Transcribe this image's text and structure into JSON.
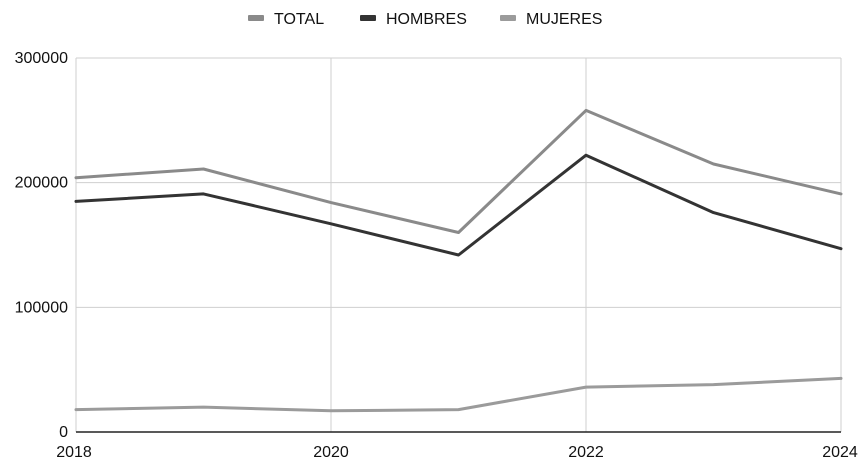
{
  "chart_data": {
    "type": "line",
    "title": "",
    "xlabel": "",
    "ylabel": "",
    "x": [
      2018,
      2019,
      2020,
      2021,
      2022,
      2023,
      2024
    ],
    "xlim": [
      2018,
      2024
    ],
    "ylim": [
      0,
      300000
    ],
    "x_ticks": [
      "2018",
      "2020",
      "2022",
      "2024"
    ],
    "y_ticks": [
      "0",
      "100000",
      "200000",
      "300000"
    ],
    "grid": true,
    "legend_position": "top",
    "series": [
      {
        "name": "TOTAL",
        "color": "#8a8a8a",
        "values": [
          204000,
          211000,
          184000,
          160000,
          258000,
          215000,
          191000
        ]
      },
      {
        "name": "HOMBRES",
        "color": "#333333",
        "values": [
          185000,
          191000,
          167000,
          142000,
          222000,
          176000,
          147000
        ]
      },
      {
        "name": "MUJERES",
        "color": "#9b9b9b",
        "values": [
          18000,
          20000,
          17000,
          18000,
          36000,
          38000,
          43000
        ]
      }
    ]
  }
}
